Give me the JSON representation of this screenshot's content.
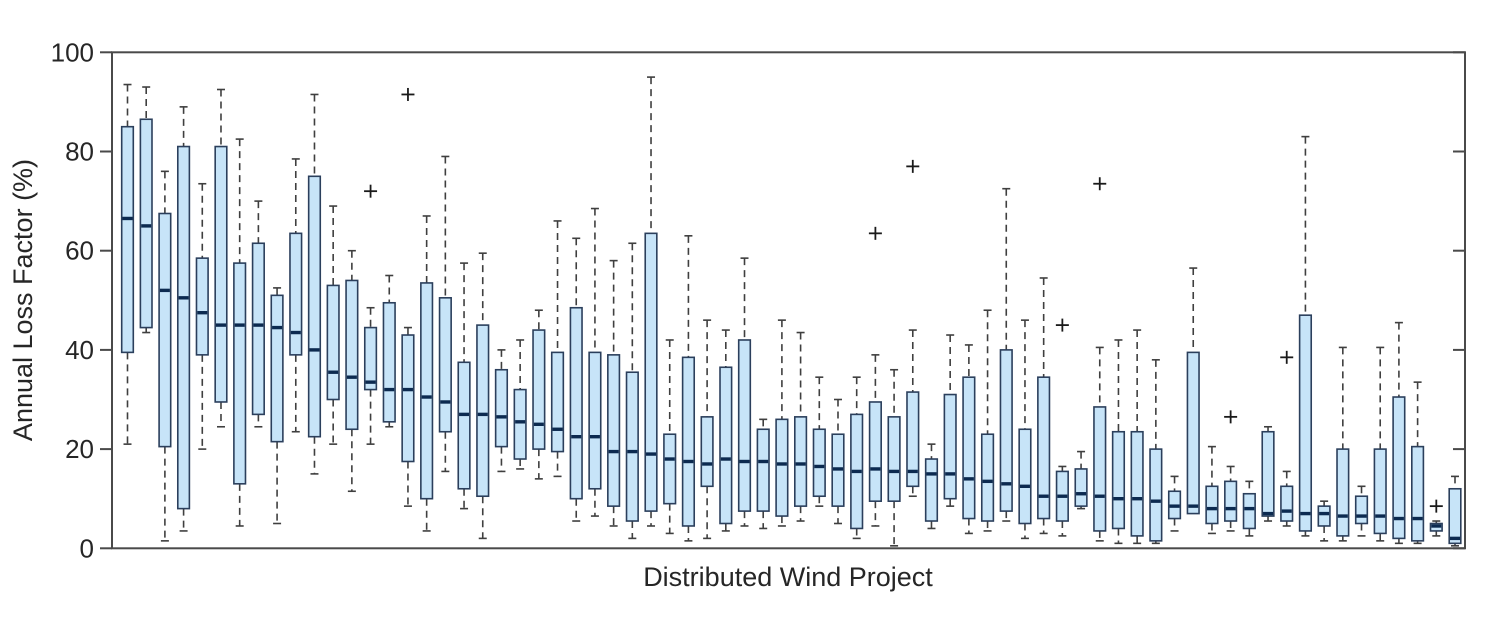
{
  "chart_data": {
    "type": "boxplot",
    "title": "",
    "xlabel": "Distributed Wind Project",
    "ylabel": "Annual Loss Factor (%)",
    "ylim": [
      0,
      100
    ],
    "yticks": [
      0,
      20,
      40,
      60,
      80,
      100
    ],
    "x_tick_labels": "none",
    "grid": "off",
    "n_boxes": 72,
    "box_fill": "#C7E4F8",
    "box_edge": "#2B3F5C",
    "median_color": "#0C2A50",
    "whisker_color": "#3F3F3F",
    "outlier_color": "#1A1A1A",
    "axis_color": "#4A4A4A",
    "boxes": [
      {
        "lo": 21,
        "q1": 39.5,
        "med": 66.5,
        "q3": 85,
        "hi": 93.5,
        "out": []
      },
      {
        "lo": 43.5,
        "q1": 44.5,
        "med": 65,
        "q3": 86.5,
        "hi": 93,
        "out": []
      },
      {
        "lo": 1.5,
        "q1": 20.5,
        "med": 52,
        "q3": 67.5,
        "hi": 76,
        "out": []
      },
      {
        "lo": 3.5,
        "q1": 8,
        "med": 50.5,
        "q3": 81,
        "hi": 89,
        "out": []
      },
      {
        "lo": 20,
        "q1": 39,
        "med": 47.5,
        "q3": 58.5,
        "hi": 73.5,
        "out": []
      },
      {
        "lo": 24.5,
        "q1": 29.5,
        "med": 45,
        "q3": 81,
        "hi": 92.5,
        "out": []
      },
      {
        "lo": 4.5,
        "q1": 13,
        "med": 45,
        "q3": 57.5,
        "hi": 82.5,
        "out": []
      },
      {
        "lo": 24.5,
        "q1": 27,
        "med": 45,
        "q3": 61.5,
        "hi": 70,
        "out": []
      },
      {
        "lo": 5,
        "q1": 21.5,
        "med": 44.5,
        "q3": 51,
        "hi": 52.5,
        "out": []
      },
      {
        "lo": 23.5,
        "q1": 39,
        "med": 43.5,
        "q3": 63.5,
        "hi": 78.5,
        "out": []
      },
      {
        "lo": 15,
        "q1": 22.5,
        "med": 40,
        "q3": 75,
        "hi": 91.5,
        "out": []
      },
      {
        "lo": 21,
        "q1": 30,
        "med": 35.5,
        "q3": 53,
        "hi": 69,
        "out": []
      },
      {
        "lo": 11.5,
        "q1": 24,
        "med": 34.5,
        "q3": 54,
        "hi": 60,
        "out": []
      },
      {
        "lo": 21,
        "q1": 32,
        "med": 33.5,
        "q3": 44.5,
        "hi": 48.5,
        "out": [
          72
        ]
      },
      {
        "lo": 24.5,
        "q1": 25.5,
        "med": 32,
        "q3": 49.5,
        "hi": 55,
        "out": []
      },
      {
        "lo": 8.5,
        "q1": 17.5,
        "med": 32,
        "q3": 43,
        "hi": 44.5,
        "out": [
          91.5
        ]
      },
      {
        "lo": 3.5,
        "q1": 10,
        "med": 30.5,
        "q3": 53.5,
        "hi": 67,
        "out": []
      },
      {
        "lo": 15.5,
        "q1": 23.5,
        "med": 29.5,
        "q3": 50.5,
        "hi": 79,
        "out": []
      },
      {
        "lo": 8,
        "q1": 12,
        "med": 27,
        "q3": 37.5,
        "hi": 57.5,
        "out": []
      },
      {
        "lo": 2,
        "q1": 10.5,
        "med": 27,
        "q3": 45,
        "hi": 59.5,
        "out": []
      },
      {
        "lo": 15.5,
        "q1": 20.5,
        "med": 26.5,
        "q3": 36,
        "hi": 40,
        "out": []
      },
      {
        "lo": 16,
        "q1": 18,
        "med": 25.5,
        "q3": 32,
        "hi": 42,
        "out": []
      },
      {
        "lo": 14,
        "q1": 20,
        "med": 25,
        "q3": 44,
        "hi": 48,
        "out": []
      },
      {
        "lo": 14.5,
        "q1": 19.5,
        "med": 24,
        "q3": 39.5,
        "hi": 66,
        "out": []
      },
      {
        "lo": 5.5,
        "q1": 10,
        "med": 22.5,
        "q3": 48.5,
        "hi": 62.5,
        "out": []
      },
      {
        "lo": 6.5,
        "q1": 12,
        "med": 22.5,
        "q3": 39.5,
        "hi": 68.5,
        "out": []
      },
      {
        "lo": 4.5,
        "q1": 8.5,
        "med": 19.5,
        "q3": 39,
        "hi": 58,
        "out": []
      },
      {
        "lo": 2,
        "q1": 5.5,
        "med": 19.5,
        "q3": 35.5,
        "hi": 61.5,
        "out": []
      },
      {
        "lo": 4.5,
        "q1": 7.5,
        "med": 19,
        "q3": 63.5,
        "hi": 95,
        "out": []
      },
      {
        "lo": 3,
        "q1": 9,
        "med": 18,
        "q3": 23,
        "hi": 42,
        "out": []
      },
      {
        "lo": 1.5,
        "q1": 4.5,
        "med": 17.5,
        "q3": 38.5,
        "hi": 63,
        "out": []
      },
      {
        "lo": 2,
        "q1": 12.5,
        "med": 17,
        "q3": 26.5,
        "hi": 46,
        "out": []
      },
      {
        "lo": 3.5,
        "q1": 5,
        "med": 18,
        "q3": 36.5,
        "hi": 44,
        "out": []
      },
      {
        "lo": 4.5,
        "q1": 7.5,
        "med": 17.5,
        "q3": 42,
        "hi": 58.5,
        "out": []
      },
      {
        "lo": 4,
        "q1": 7.5,
        "med": 17.5,
        "q3": 24,
        "hi": 26,
        "out": []
      },
      {
        "lo": 4.5,
        "q1": 6.5,
        "med": 17,
        "q3": 26,
        "hi": 46,
        "out": []
      },
      {
        "lo": 5.5,
        "q1": 8.5,
        "med": 17,
        "q3": 26.5,
        "hi": 43.5,
        "out": []
      },
      {
        "lo": 8.5,
        "q1": 10.5,
        "med": 16.5,
        "q3": 24,
        "hi": 34.5,
        "out": []
      },
      {
        "lo": 5,
        "q1": 8.5,
        "med": 16,
        "q3": 23,
        "hi": 30,
        "out": []
      },
      {
        "lo": 2,
        "q1": 4,
        "med": 15.5,
        "q3": 27,
        "hi": 34.5,
        "out": []
      },
      {
        "lo": 4.5,
        "q1": 9.5,
        "med": 16,
        "q3": 29.5,
        "hi": 39,
        "out": [
          63.5
        ]
      },
      {
        "lo": 0.5,
        "q1": 9.5,
        "med": 15.5,
        "q3": 26.5,
        "hi": 36,
        "out": []
      },
      {
        "lo": 10.5,
        "q1": 12.5,
        "med": 15.5,
        "q3": 31.5,
        "hi": 44,
        "out": [
          77
        ]
      },
      {
        "lo": 4,
        "q1": 5.5,
        "med": 15,
        "q3": 18,
        "hi": 21,
        "out": []
      },
      {
        "lo": 8.5,
        "q1": 10,
        "med": 15,
        "q3": 31,
        "hi": 43,
        "out": []
      },
      {
        "lo": 3,
        "q1": 6,
        "med": 14,
        "q3": 34.5,
        "hi": 41,
        "out": []
      },
      {
        "lo": 3.5,
        "q1": 5.5,
        "med": 13.5,
        "q3": 23,
        "hi": 48,
        "out": []
      },
      {
        "lo": 5.5,
        "q1": 7.5,
        "med": 13,
        "q3": 40,
        "hi": 72.5,
        "out": []
      },
      {
        "lo": 2,
        "q1": 5,
        "med": 12.5,
        "q3": 24,
        "hi": 46,
        "out": []
      },
      {
        "lo": 3,
        "q1": 6,
        "med": 10.5,
        "q3": 34.5,
        "hi": 54.5,
        "out": []
      },
      {
        "lo": 2.5,
        "q1": 5.5,
        "med": 10.5,
        "q3": 15.5,
        "hi": 16.5,
        "out": [
          45
        ]
      },
      {
        "lo": 8,
        "q1": 8.5,
        "med": 11,
        "q3": 16,
        "hi": 19.5,
        "out": []
      },
      {
        "lo": 1.5,
        "q1": 3.5,
        "med": 10.5,
        "q3": 28.5,
        "hi": 40.5,
        "out": [
          73.5
        ]
      },
      {
        "lo": 1,
        "q1": 4,
        "med": 10,
        "q3": 23.5,
        "hi": 42,
        "out": []
      },
      {
        "lo": 1,
        "q1": 2.5,
        "med": 10,
        "q3": 23.5,
        "hi": 44,
        "out": []
      },
      {
        "lo": 1,
        "q1": 1.5,
        "med": 9.5,
        "q3": 20,
        "hi": 38,
        "out": []
      },
      {
        "lo": 3.5,
        "q1": 6,
        "med": 8.5,
        "q3": 11.5,
        "hi": 14.5,
        "out": []
      },
      {
        "lo": 7,
        "q1": 7,
        "med": 8.5,
        "q3": 39.5,
        "hi": 56.5,
        "out": []
      },
      {
        "lo": 3,
        "q1": 5,
        "med": 8,
        "q3": 12.5,
        "hi": 20.5,
        "out": []
      },
      {
        "lo": 3.5,
        "q1": 5.5,
        "med": 8,
        "q3": 13.5,
        "hi": 16.5,
        "out": [
          26.5
        ]
      },
      {
        "lo": 2.5,
        "q1": 4,
        "med": 8,
        "q3": 11,
        "hi": 13.5,
        "out": []
      },
      {
        "lo": 5.5,
        "q1": 6.5,
        "med": 7,
        "q3": 23.5,
        "hi": 24.5,
        "out": []
      },
      {
        "lo": 4.5,
        "q1": 5.5,
        "med": 7.5,
        "q3": 12.5,
        "hi": 15.5,
        "out": [
          38.5
        ]
      },
      {
        "lo": 2.5,
        "q1": 3.5,
        "med": 7,
        "q3": 47,
        "hi": 83,
        "out": []
      },
      {
        "lo": 1.5,
        "q1": 4.5,
        "med": 7,
        "q3": 8.5,
        "hi": 9.5,
        "out": []
      },
      {
        "lo": 1.5,
        "q1": 2.5,
        "med": 6.5,
        "q3": 20,
        "hi": 40.5,
        "out": []
      },
      {
        "lo": 2.5,
        "q1": 5,
        "med": 6.5,
        "q3": 10.5,
        "hi": 12.5,
        "out": []
      },
      {
        "lo": 1.5,
        "q1": 3,
        "med": 6.5,
        "q3": 20,
        "hi": 40.5,
        "out": []
      },
      {
        "lo": 1,
        "q1": 2,
        "med": 6,
        "q3": 30.5,
        "hi": 45.5,
        "out": []
      },
      {
        "lo": 1,
        "q1": 1.5,
        "med": 6,
        "q3": 20.5,
        "hi": 33.5,
        "out": []
      },
      {
        "lo": 2.5,
        "q1": 3.5,
        "med": 4.5,
        "q3": 5,
        "hi": 5.5,
        "out": [
          8.5
        ]
      },
      {
        "lo": 0.5,
        "q1": 1,
        "med": 2,
        "q3": 12,
        "hi": 14.5,
        "out": []
      }
    ]
  }
}
